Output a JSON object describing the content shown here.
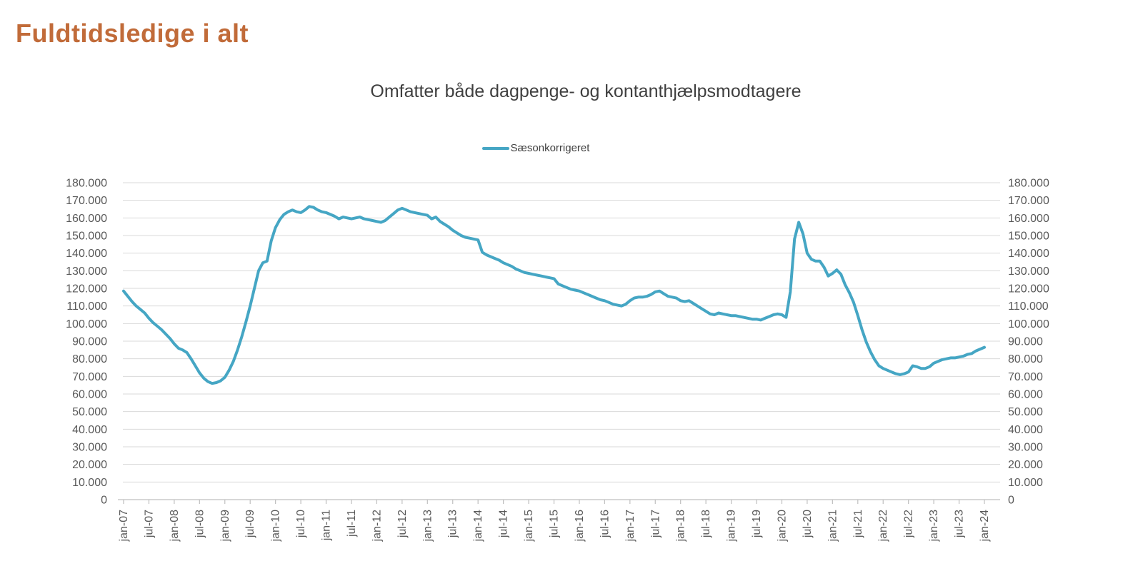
{
  "page": {
    "title": "Fuldtidsledige i alt",
    "title_color": "#C16B39",
    "background": "#ffffff"
  },
  "chart": {
    "subtitle": "Omfatter både dagpenge- og kontanthjælpsmodtagere",
    "legend": {
      "label": "Sæsonkorrigeret"
    },
    "colors": {
      "series_line": "#45A6C4",
      "gridline": "#D9D9D9",
      "axis_line": "#BFBFBF",
      "axis_text": "#595959",
      "subtitle_text": "#3f3f3f"
    }
  },
  "chart_data": {
    "type": "line",
    "title": "Omfatter både dagpenge- og kontanthjælpsmodtagere",
    "legend_position": "top-center",
    "grid": "horizontal",
    "dual_y_axis": true,
    "ylim": [
      0,
      180000
    ],
    "y_step": 10000,
    "y_tick_labels": [
      "0",
      "10.000",
      "20.000",
      "30.000",
      "40.000",
      "50.000",
      "60.000",
      "70.000",
      "80.000",
      "90.000",
      "100.000",
      "110.000",
      "120.000",
      "130.000",
      "140.000",
      "150.000",
      "160.000",
      "170.000",
      "180.000"
    ],
    "x_start": "jan-07",
    "x_end": "jan-24",
    "frequency": "monthly",
    "x_tick_every_months": 6,
    "x_tick_labels": [
      "jan-07",
      "jul-07",
      "jan-08",
      "jul-08",
      "jan-09",
      "jul-09",
      "jan-10",
      "jul-10",
      "jan-11",
      "jul-11",
      "jan-12",
      "jul-12",
      "jan-13",
      "jul-13",
      "jan-14",
      "jul-14",
      "jan-15",
      "jul-15",
      "jan-16",
      "jul-16",
      "jan-17",
      "jul-17",
      "jan-18",
      "jul-18",
      "jan-19",
      "jul-19",
      "jan-20",
      "jul-20",
      "jan-21",
      "jul-21",
      "jan-22",
      "jul-22",
      "jan-23",
      "jul-23",
      "jan-24"
    ],
    "series": [
      {
        "name": "Sæsonkorrigeret",
        "color": "#45A6C4",
        "values": [
          118500,
          115500,
          112500,
          110000,
          108000,
          106000,
          103000,
          100500,
          98500,
          96500,
          94000,
          91500,
          88500,
          86000,
          85000,
          83500,
          80000,
          76000,
          72000,
          69000,
          67000,
          66000,
          66500,
          67500,
          69500,
          73500,
          78500,
          85000,
          92500,
          101000,
          110000,
          120000,
          130000,
          134500,
          135500,
          147000,
          154500,
          159000,
          162000,
          163500,
          164500,
          163500,
          163000,
          164500,
          166500,
          166000,
          164500,
          163500,
          163000,
          162000,
          161000,
          159500,
          160500,
          160000,
          159500,
          160000,
          160500,
          159500,
          159000,
          158500,
          158000,
          157500,
          158500,
          160500,
          162500,
          164500,
          165500,
          164500,
          163500,
          163000,
          162500,
          162000,
          161500,
          159500,
          160500,
          158000,
          156500,
          155000,
          153000,
          151500,
          150000,
          149000,
          148500,
          148000,
          147500,
          140500,
          139000,
          138000,
          137000,
          136000,
          134500,
          133500,
          132500,
          131000,
          130000,
          129000,
          128500,
          128000,
          127500,
          127000,
          126500,
          126000,
          125500,
          122500,
          121500,
          120500,
          119500,
          119000,
          118500,
          117500,
          116500,
          115500,
          114500,
          113500,
          113000,
          112000,
          111000,
          110500,
          110000,
          111000,
          113000,
          114500,
          115000,
          115000,
          115500,
          116500,
          118000,
          118500,
          117000,
          115500,
          115000,
          114500,
          113000,
          112500,
          113000,
          111500,
          110000,
          108500,
          107000,
          105500,
          105000,
          106000,
          105500,
          105000,
          104500,
          104500,
          104000,
          103500,
          103000,
          102500,
          102500,
          102000,
          103000,
          104000,
          105000,
          105500,
          105000,
          103500,
          118000,
          148000,
          157500,
          151000,
          140000,
          136500,
          135500,
          135500,
          132000,
          127000,
          128500,
          130500,
          128000,
          122000,
          117500,
          112000,
          104500,
          96500,
          89500,
          84000,
          79500,
          76000,
          74500,
          73500,
          72500,
          71500,
          71000,
          71500,
          72500,
          76000,
          75500,
          74500,
          74500,
          75500,
          77500,
          78500,
          79500,
          80000,
          80500,
          80500,
          81000,
          81500,
          82500,
          83000,
          84500,
          85500,
          86500
        ]
      }
    ]
  }
}
